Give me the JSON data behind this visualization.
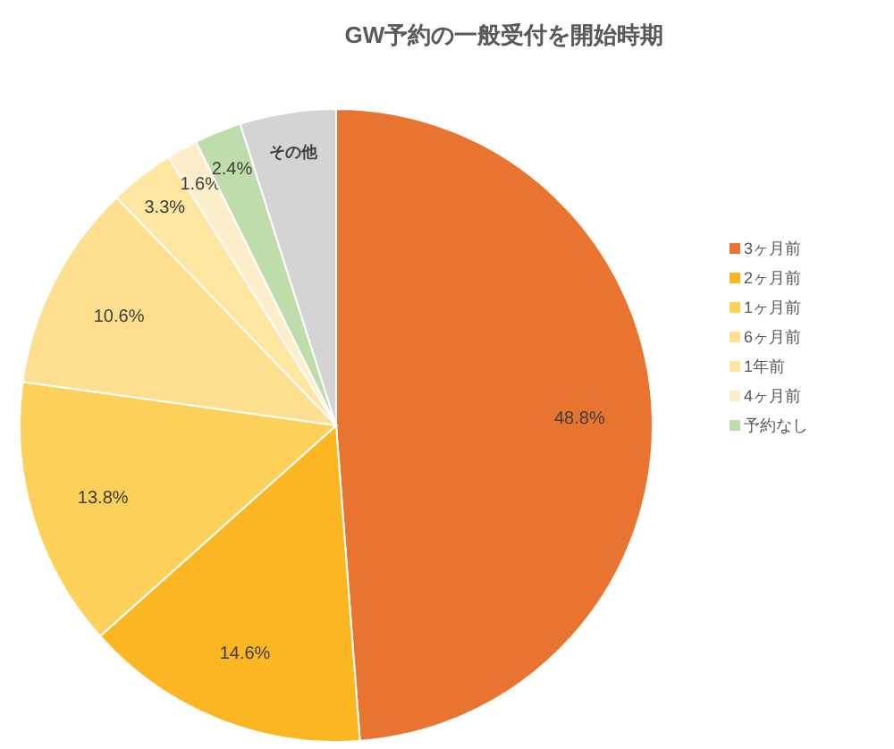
{
  "chart_data": {
    "type": "pie",
    "title": "GW予約の一般受付を開始時期",
    "categories": [
      "3ヶ月前",
      "2ヶ月前",
      "1ヶ月前",
      "6ヶ月前",
      "1年前",
      "4ヶ月前",
      "予約なし",
      null
    ],
    "values": [
      48.8,
      14.6,
      13.8,
      10.6,
      3.3,
      1.6,
      2.4,
      4.9
    ],
    "colors": [
      "#e8742f",
      "#fbb622",
      "#fdd05a",
      "#fedf8f",
      "#fde6a0",
      "#fdeecb",
      "#bfdcab",
      "#d4d4d4"
    ],
    "value_labels": [
      "48.8%",
      "14.6%",
      "13.8%",
      "10.6%",
      "3.3%",
      "1.6%",
      "2.4%",
      "その他"
    ],
    "legend": "right"
  }
}
